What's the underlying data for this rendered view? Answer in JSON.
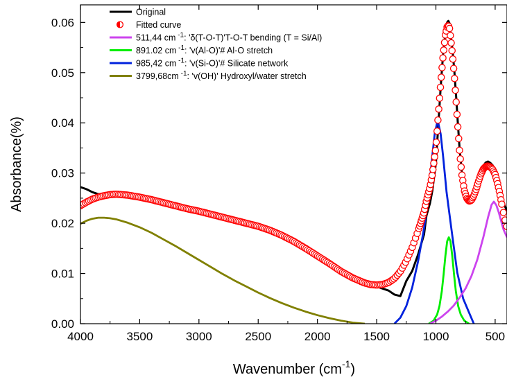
{
  "chart_data": {
    "type": "line",
    "title": "",
    "xlabel": "Wavenumber (cm",
    "xlabel_sup": "-1",
    "xlabel_suffix": ")",
    "ylabel": "Absorbance(%)",
    "xlim": [
      4000,
      400
    ],
    "x_reversed": true,
    "ylim": [
      0,
      0.0635
    ],
    "x_ticks": [
      4000,
      3500,
      3000,
      2500,
      2000,
      1500,
      1000,
      500
    ],
    "x_tick_labels": [
      "4000",
      "3500",
      "3000",
      "2500",
      "2000",
      "1500",
      "1000",
      "500"
    ],
    "y_ticks": [
      0,
      0.01,
      0.02,
      0.03,
      0.04,
      0.05,
      0.06
    ],
    "y_tick_labels": [
      "0.00",
      "0.01",
      "0.02",
      "0.03",
      "0.04",
      "0.05",
      "0.06"
    ],
    "grid": false,
    "legend_position": "top-left",
    "legend": [
      {
        "key": "original",
        "parts": [
          "Original"
        ]
      },
      {
        "key": "fitted",
        "parts": [
          "Fitted curve"
        ]
      },
      {
        "key": "p511",
        "parts": [
          "511,44 cm",
          " -1",
          ": 'δ(T-O-T)'T-O-T bending (T = Si/Al)"
        ]
      },
      {
        "key": "p891",
        "parts": [
          "891.02 cm",
          " -1",
          ": 'v(Al-O)'# Al-O stretch"
        ]
      },
      {
        "key": "p985",
        "parts": [
          "985,42 cm",
          " -1",
          ": 'v(Si-O)'# Silicate network"
        ]
      },
      {
        "key": "p3799",
        "parts": [
          "3799,68cm",
          " -1",
          ": 'v(OH)' Hydroxyl/water stretch"
        ]
      }
    ],
    "series": [
      {
        "key": "original",
        "name": "Original",
        "color": "#000000",
        "style": "line",
        "x": [
          4000,
          3950,
          3900,
          3850,
          3800,
          3750,
          3700,
          3650,
          3600,
          3550,
          3500,
          3400,
          3300,
          3200,
          3100,
          3000,
          2900,
          2800,
          2700,
          2600,
          2500,
          2400,
          2300,
          2200,
          2100,
          2000,
          1900,
          1800,
          1700,
          1600,
          1550,
          1500,
          1450,
          1400,
          1350,
          1300,
          1250,
          1200,
          1150,
          1100,
          1080,
          1050,
          1030,
          1000,
          980,
          960,
          940,
          920,
          905,
          895,
          885,
          875,
          860,
          845,
          830,
          815,
          800,
          780,
          760,
          740,
          720,
          700,
          680,
          660,
          640,
          620,
          600,
          580,
          560,
          540,
          520,
          500,
          480,
          460,
          440,
          420,
          400
        ],
        "y": [
          0.0272,
          0.0268,
          0.0262,
          0.0258,
          0.0259,
          0.026,
          0.0259,
          0.0258,
          0.0257,
          0.0255,
          0.0253,
          0.0249,
          0.0242,
          0.0236,
          0.0228,
          0.0223,
          0.0218,
          0.0212,
          0.0207,
          0.0201,
          0.0195,
          0.0187,
          0.0177,
          0.0165,
          0.0152,
          0.0138,
          0.0122,
          0.0106,
          0.0092,
          0.0082,
          0.0078,
          0.0074,
          0.007,
          0.0066,
          0.0058,
          0.0055,
          0.0085,
          0.0105,
          0.0138,
          0.0178,
          0.0215,
          0.024,
          0.0265,
          0.032,
          0.0395,
          0.047,
          0.0535,
          0.058,
          0.06,
          0.0603,
          0.0598,
          0.0575,
          0.0545,
          0.0505,
          0.0455,
          0.04,
          0.0348,
          0.03,
          0.027,
          0.0254,
          0.0247,
          0.0247,
          0.0255,
          0.027,
          0.0288,
          0.0303,
          0.0314,
          0.0321,
          0.0323,
          0.032,
          0.0315,
          0.0305,
          0.029,
          0.027,
          0.025,
          0.0235,
          0.0225
        ]
      },
      {
        "key": "fitted",
        "name": "Fitted curve",
        "color": "#ff0000",
        "style": "markers",
        "x": [
          4000,
          3950,
          3900,
          3850,
          3800,
          3750,
          3700,
          3650,
          3600,
          3550,
          3500,
          3400,
          3300,
          3200,
          3100,
          3000,
          2900,
          2800,
          2700,
          2600,
          2500,
          2400,
          2300,
          2200,
          2100,
          2000,
          1900,
          1800,
          1700,
          1600,
          1550,
          1500,
          1450,
          1400,
          1350,
          1300,
          1250,
          1200,
          1150,
          1100,
          1080,
          1050,
          1030,
          1000,
          980,
          960,
          940,
          920,
          905,
          895,
          885,
          875,
          860,
          845,
          830,
          815,
          800,
          780,
          760,
          740,
          720,
          700,
          680,
          660,
          640,
          620,
          600,
          580,
          560,
          540,
          520,
          500,
          480,
          460,
          440,
          420,
          400
        ],
        "y": [
          0.0235,
          0.0242,
          0.0248,
          0.0252,
          0.0255,
          0.0257,
          0.0258,
          0.0257,
          0.0256,
          0.0254,
          0.0252,
          0.0247,
          0.0241,
          0.0235,
          0.0229,
          0.0224,
          0.0218,
          0.0212,
          0.0206,
          0.02,
          0.0194,
          0.0186,
          0.0176,
          0.0164,
          0.015,
          0.0135,
          0.012,
          0.0104,
          0.0091,
          0.0081,
          0.0078,
          0.0077,
          0.0078,
          0.0082,
          0.009,
          0.0104,
          0.0125,
          0.0152,
          0.0185,
          0.0222,
          0.0245,
          0.0272,
          0.0298,
          0.0352,
          0.0415,
          0.0477,
          0.0532,
          0.0575,
          0.0592,
          0.0594,
          0.0588,
          0.0568,
          0.0535,
          0.0495,
          0.0445,
          0.0392,
          0.0342,
          0.0296,
          0.0265,
          0.025,
          0.0244,
          0.0246,
          0.0255,
          0.0268,
          0.0284,
          0.0298,
          0.0308,
          0.0313,
          0.0314,
          0.0312,
          0.0307,
          0.0297,
          0.028,
          0.0258,
          0.0233,
          0.021,
          0.0192
        ]
      },
      {
        "key": "p511",
        "name": "511,44 cm -1: 'δ(T-O-T)'T-O-T bending (T = Si/Al)",
        "color": "#cc44ee",
        "style": "line",
        "x": [
          1050,
          1000,
          950,
          900,
          850,
          800,
          750,
          700,
          650,
          600,
          560,
          530,
          511,
          490,
          470,
          450,
          430,
          400
        ],
        "y": [
          0.0,
          0.0006,
          0.0014,
          0.0024,
          0.0036,
          0.0052,
          0.007,
          0.0095,
          0.0128,
          0.0172,
          0.0212,
          0.0237,
          0.0243,
          0.0236,
          0.0222,
          0.0205,
          0.0188,
          0.0172
        ]
      },
      {
        "key": "p891",
        "name": "891.02 cm -1: 'v(Al-O)'# Al-O stretch",
        "color": "#00ee00",
        "style": "line",
        "x": [
          1060,
          1020,
          990,
          970,
          950,
          935,
          920,
          905,
          891,
          877,
          862,
          847,
          832,
          812,
          790,
          760,
          720
        ],
        "y": [
          0.0,
          0.0006,
          0.0018,
          0.0035,
          0.0065,
          0.0098,
          0.0135,
          0.0164,
          0.0172,
          0.0164,
          0.0135,
          0.0098,
          0.0065,
          0.0035,
          0.0018,
          0.0006,
          0.0
        ]
      },
      {
        "key": "p985",
        "name": "985,42 cm -1: 'v(Si-O)'# Silicate network",
        "color": "#0022dd",
        "style": "line",
        "x": [
          1350,
          1300,
          1250,
          1200,
          1150,
          1100,
          1060,
          1030,
          1010,
          985,
          960,
          940,
          910,
          870,
          820,
          770,
          720,
          680
        ],
        "y": [
          0.0,
          0.0012,
          0.0035,
          0.0072,
          0.0125,
          0.019,
          0.0262,
          0.0335,
          0.0378,
          0.0405,
          0.0378,
          0.0335,
          0.0262,
          0.019,
          0.0102,
          0.005,
          0.0022,
          0.0
        ]
      },
      {
        "key": "p3799",
        "name": "3799,68cm -1: 'v(OH)' Hydroxyl/water stretch",
        "color": "#808000",
        "style": "line",
        "x": [
          4000,
          3950,
          3900,
          3850,
          3800,
          3750,
          3700,
          3600,
          3500,
          3400,
          3300,
          3200,
          3100,
          3000,
          2900,
          2800,
          2700,
          2600,
          2500,
          2400,
          2300,
          2200,
          2100,
          2000,
          1900,
          1800,
          1700,
          1600
        ],
        "y": [
          0.0199,
          0.0205,
          0.0209,
          0.0211,
          0.0211,
          0.021,
          0.0208,
          0.0201,
          0.0192,
          0.0181,
          0.0168,
          0.0155,
          0.0141,
          0.0127,
          0.0113,
          0.0099,
          0.0086,
          0.0074,
          0.0062,
          0.0051,
          0.0041,
          0.0032,
          0.0024,
          0.0017,
          0.0011,
          0.0006,
          0.0002,
          0.0
        ]
      }
    ]
  }
}
